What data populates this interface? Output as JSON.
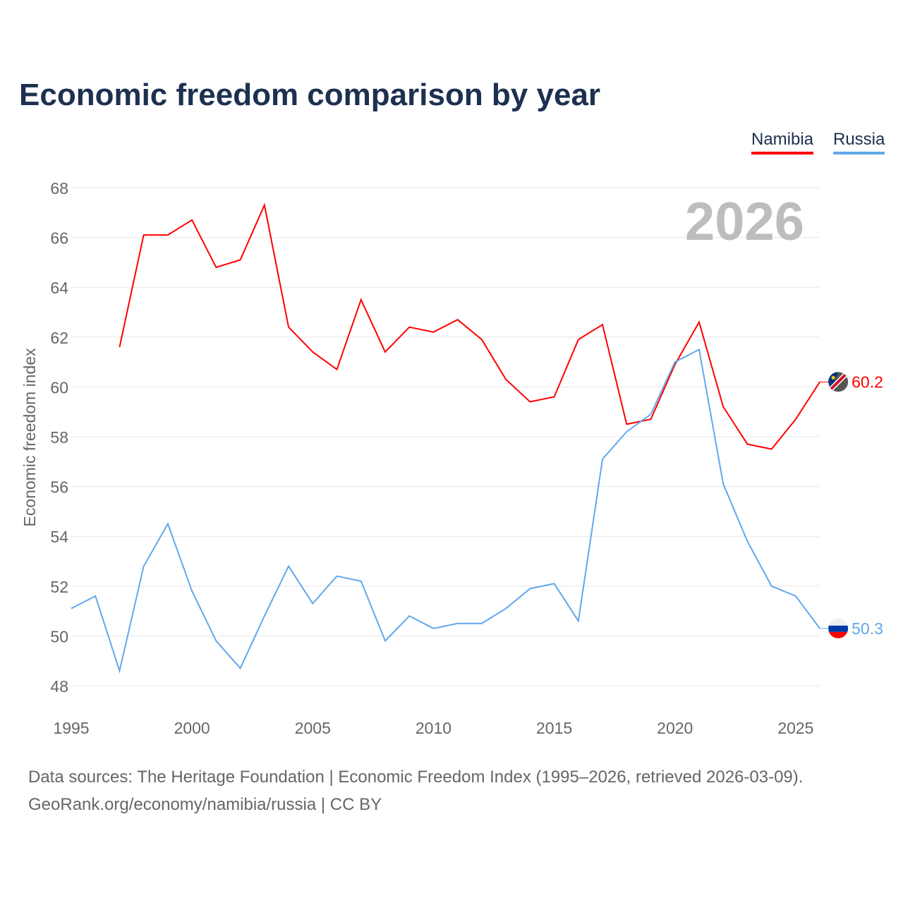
{
  "title": "Economic freedom comparison by year",
  "footer": {
    "line1": "Data sources: The Heritage Foundation | Economic Freedom Index (1995–2026, retrieved 2026-03-09).",
    "line2": "GeoRank.org/economy/namibia/russia | CC BY"
  },
  "chart_data": {
    "type": "line",
    "title": "Economic freedom comparison by year",
    "xlabel": "",
    "ylabel": "Economic freedom index",
    "xlim": [
      1995,
      2026
    ],
    "ylim": [
      47,
      69
    ],
    "yticks": [
      48,
      50,
      52,
      54,
      56,
      58,
      60,
      62,
      64,
      66,
      68
    ],
    "xticks": [
      1995,
      2000,
      2005,
      2010,
      2015,
      2020,
      2025
    ],
    "year_label": "2026",
    "grid": true,
    "legend_position": "top-right",
    "series": [
      {
        "name": "Namibia",
        "color": "#ff0000",
        "end_label": "60.2",
        "x": [
          1997,
          1998,
          1999,
          2000,
          2001,
          2002,
          2003,
          2004,
          2005,
          2006,
          2007,
          2008,
          2009,
          2010,
          2011,
          2012,
          2013,
          2014,
          2015,
          2016,
          2017,
          2018,
          2019,
          2020,
          2021,
          2022,
          2023,
          2024,
          2025,
          2026
        ],
        "values": [
          61.6,
          66.1,
          66.1,
          66.7,
          64.8,
          65.1,
          67.3,
          62.4,
          61.4,
          60.7,
          63.5,
          61.4,
          62.4,
          62.2,
          62.7,
          61.9,
          60.3,
          59.4,
          59.6,
          61.9,
          62.5,
          58.5,
          58.7,
          60.9,
          62.6,
          59.2,
          57.7,
          57.5,
          58.7,
          60.2
        ]
      },
      {
        "name": "Russia",
        "color": "#62a8ea",
        "end_label": "50.3",
        "x": [
          1995,
          1996,
          1997,
          1998,
          1999,
          2000,
          2001,
          2002,
          2003,
          2004,
          2005,
          2006,
          2007,
          2008,
          2009,
          2010,
          2011,
          2012,
          2013,
          2014,
          2015,
          2016,
          2017,
          2018,
          2019,
          2020,
          2021,
          2022,
          2023,
          2024,
          2025,
          2026
        ],
        "values": [
          51.1,
          51.6,
          48.6,
          52.8,
          54.5,
          51.8,
          49.8,
          48.7,
          50.8,
          52.8,
          51.3,
          52.4,
          52.2,
          49.8,
          50.8,
          50.3,
          50.5,
          50.5,
          51.1,
          51.9,
          52.1,
          50.6,
          57.1,
          58.2,
          58.9,
          61.0,
          61.5,
          56.1,
          53.8,
          52.0,
          51.6,
          50.3
        ]
      }
    ]
  }
}
